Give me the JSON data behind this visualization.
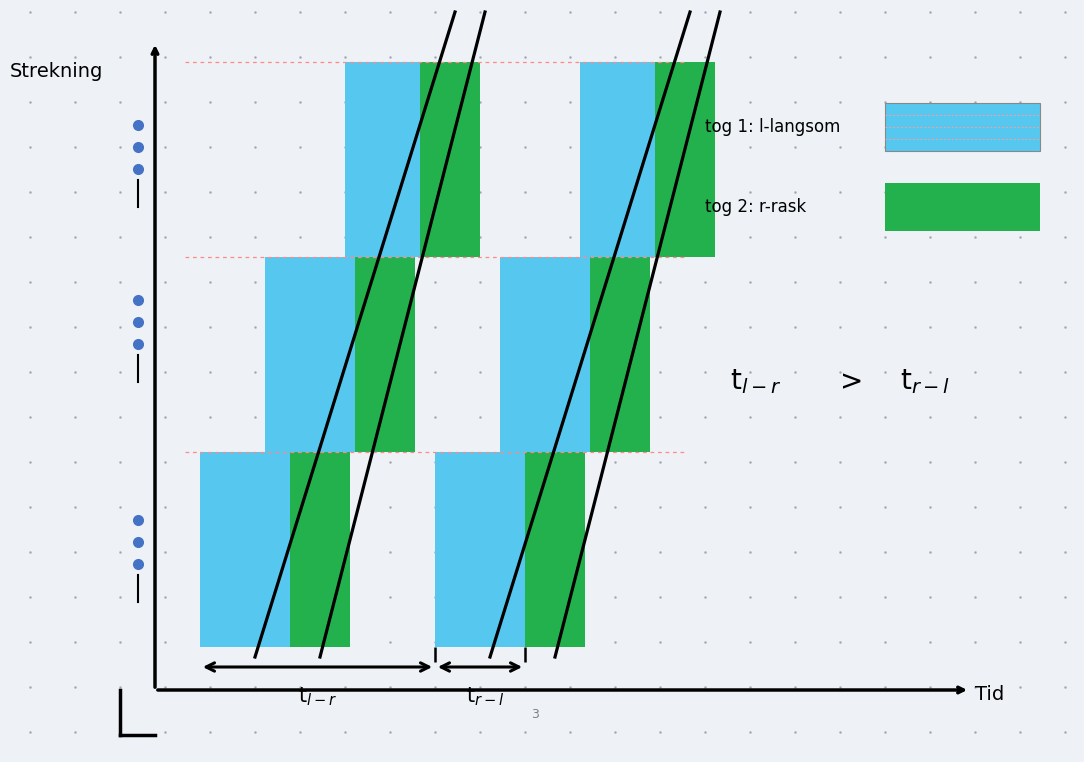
{
  "fig_width": 10.84,
  "fig_height": 7.62,
  "bg_color": "#eef2f7",
  "dot_color": "#4472c4",
  "blue_color": "#56c8f0",
  "green_color": "#22b14c",
  "legend_label1": "tog 1: l-langsom",
  "legend_label2": "tog 2: r-rask",
  "grid_dot_color": "#9999aa",
  "t_lr_label": "t$_{l-r}$",
  "t_rl_label": "t$_{r-l}$",
  "xlabel": "Tid",
  "ylabel": "Strekning",
  "compare_label": "t$_{l-r}$",
  "compare_gt": ">",
  "compare_rhs": "t$_{r-l}$"
}
